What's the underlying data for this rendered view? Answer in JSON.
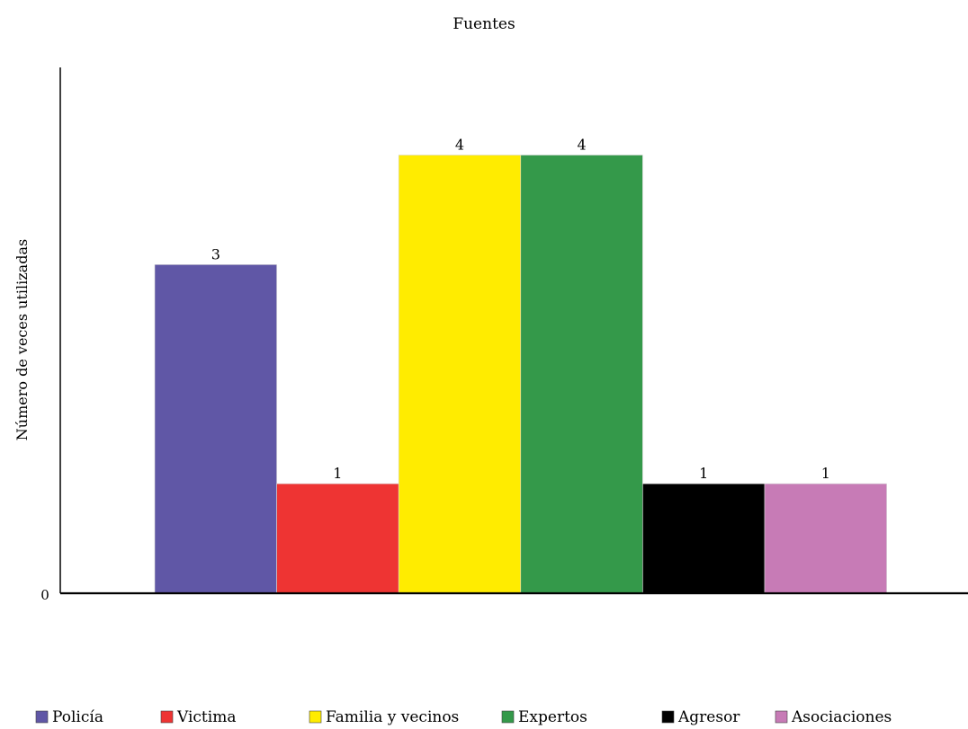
{
  "chart_data": {
    "type": "bar",
    "title": "Fuentes",
    "xlabel": "",
    "ylabel": "Número de veces utilizadas",
    "ylim": [
      0,
      4.8
    ],
    "y_ticks": [
      "0"
    ],
    "categories": [
      "Policía",
      "Victima",
      "Familia y vecinos",
      "Expertos",
      "Agresor",
      "Asociaciones"
    ],
    "values": [
      3,
      1,
      4,
      4,
      1,
      1
    ],
    "data_labels": [
      "3",
      "1",
      "4",
      "4",
      "1",
      "1"
    ],
    "colors": [
      "#6057a6",
      "#ee3433",
      "#ffec00",
      "#34994a",
      "#000000",
      "#c77bb6"
    ],
    "legend": {
      "placement": "bottom",
      "entries": [
        "Policía",
        "Victima",
        "Familia y vecinos",
        "Expertos",
        "Agresor",
        "Asociaciones"
      ]
    },
    "grid": false
  }
}
